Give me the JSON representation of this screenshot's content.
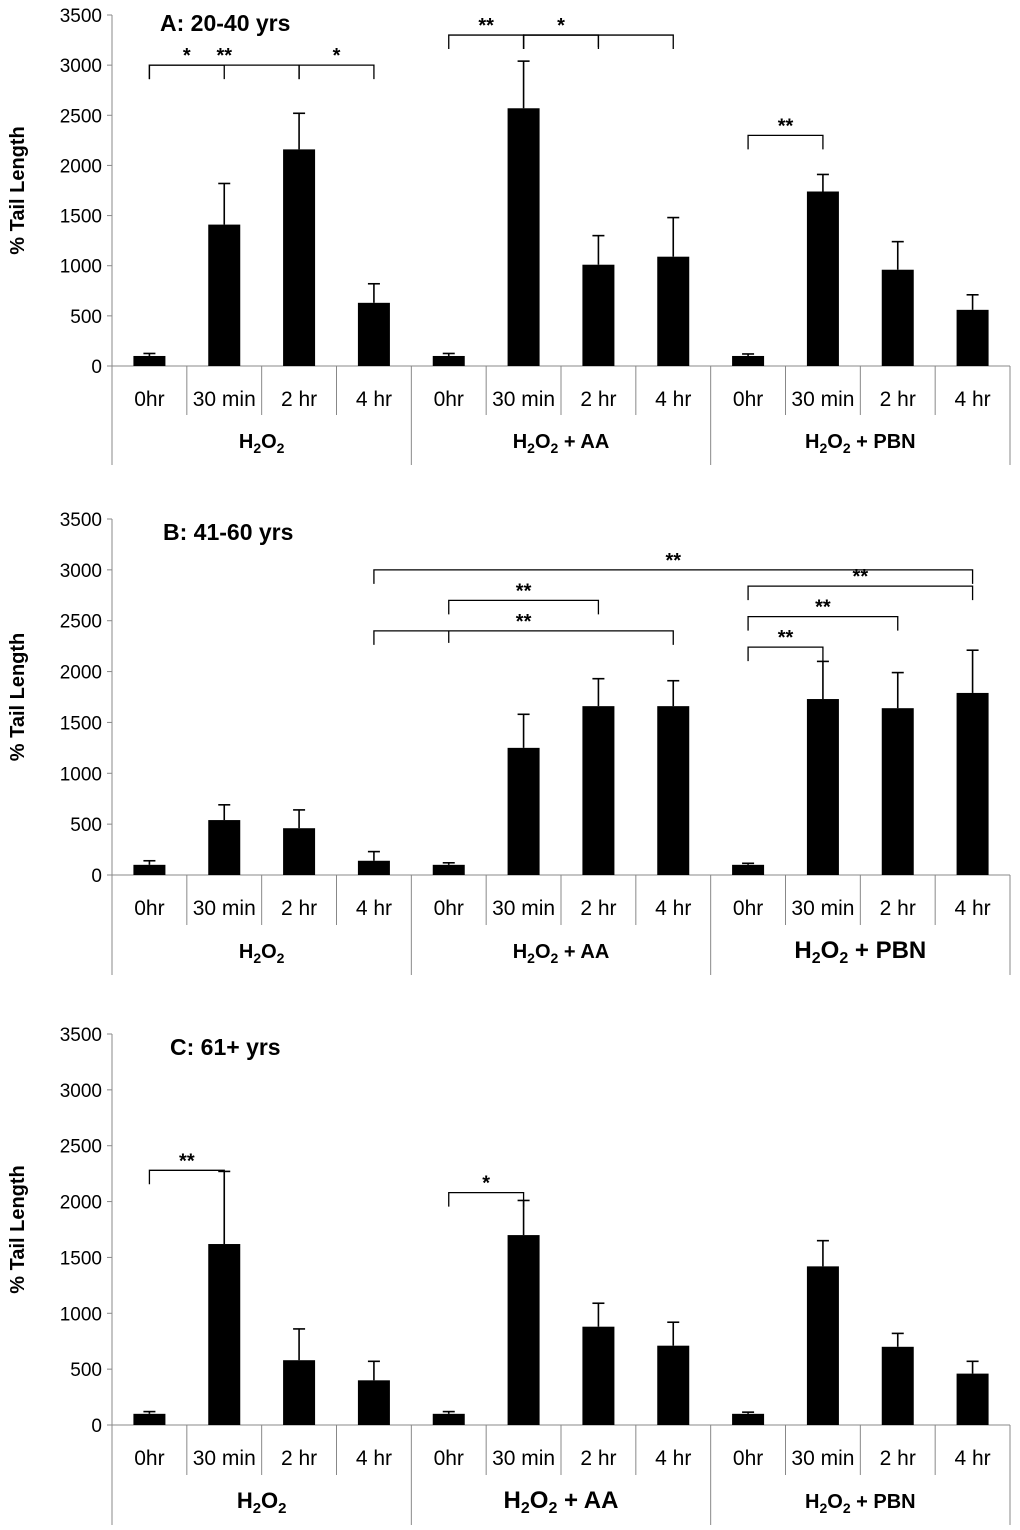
{
  "chart_data": [
    {
      "type": "bar",
      "title": "A: 20-40 yrs",
      "ylabel": "% Tail Length",
      "ylim": [
        0,
        3500
      ],
      "yticks": [
        "0",
        "500",
        "1000",
        "1500",
        "2000",
        "2500",
        "3000",
        "3500"
      ],
      "categories": [
        "0hr",
        "30 min",
        "2 hr",
        "4 hr",
        "0hr",
        "30 min",
        "2 hr",
        "4 hr",
        "0hr",
        "30 min",
        "2 hr",
        "4 hr"
      ],
      "groups": [
        {
          "base": "H",
          "sub1": "2",
          "mid": "O",
          "sub2": "2",
          "suffix": ""
        },
        {
          "base": "H",
          "sub1": "2",
          "mid": "O",
          "sub2": "2",
          "suffix": " + AA"
        },
        {
          "base": "H",
          "sub1": "2",
          "mid": "O",
          "sub2": "2",
          "suffix": " + PBN"
        }
      ],
      "values": [
        100,
        1410,
        2160,
        630,
        100,
        2570,
        1010,
        1090,
        100,
        1740,
        960,
        560
      ],
      "errors": [
        25,
        410,
        360,
        190,
        25,
        470,
        290,
        390,
        20,
        170,
        280,
        150
      ],
      "significance": [
        {
          "from": 0,
          "to": 1,
          "label": "*",
          "level": 3000
        },
        {
          "from": 0,
          "to": 2,
          "label": "**",
          "level": 3000
        },
        {
          "from": 2,
          "to": 3,
          "label": "*",
          "level": 3000
        },
        {
          "from": 4,
          "to": 5,
          "label": "**",
          "level": 3300
        },
        {
          "from": 5,
          "to": 6,
          "label": "*",
          "level": 3300
        },
        {
          "from": 5,
          "to": 7,
          "label": "",
          "level": 3300
        },
        {
          "from": 8,
          "to": 9,
          "label": "**",
          "level": 2300
        }
      ]
    },
    {
      "type": "bar",
      "title": "B: 41-60 yrs",
      "ylabel": "% Tail Length",
      "ylim": [
        0,
        3500
      ],
      "yticks": [
        "0",
        "500",
        "1000",
        "1500",
        "2000",
        "2500",
        "3000",
        "3500"
      ],
      "categories": [
        "0hr",
        "30 min",
        "2 hr",
        "4 hr",
        "0hr",
        "30 min",
        "2 hr",
        "4 hr",
        "0hr",
        "30 min",
        "2 hr",
        "4 hr"
      ],
      "groups": [
        {
          "base": "H",
          "sub1": "2",
          "mid": "O",
          "sub2": "2",
          "suffix": ""
        },
        {
          "base": "H",
          "sub1": "2",
          "mid": "O",
          "sub2": "2",
          "suffix": " + AA"
        },
        {
          "base": "H",
          "sub1": "2",
          "mid": "O",
          "sub2": "2",
          "suffix": " + PBN"
        }
      ],
      "values": [
        100,
        540,
        460,
        140,
        100,
        1250,
        1660,
        1660,
        100,
        1730,
        1640,
        1790
      ],
      "errors": [
        40,
        150,
        180,
        90,
        20,
        330,
        270,
        250,
        15,
        370,
        350,
        420
      ],
      "significance": [
        {
          "from": 3,
          "to": 11,
          "label": "**",
          "level": 3000
        },
        {
          "from": 4,
          "to": 6,
          "label": "**",
          "level": 2700
        },
        {
          "from": 3,
          "to": 7,
          "label": "**",
          "level": 2400
        },
        {
          "from": 8,
          "to": 11,
          "label": "**",
          "level": 2840
        },
        {
          "from": 8,
          "to": 10,
          "label": "**",
          "level": 2540
        },
        {
          "from": 8,
          "to": 9,
          "label": "**",
          "level": 2240
        }
      ]
    },
    {
      "type": "bar",
      "title": "C: 61+ yrs",
      "ylabel": "% Tail Length",
      "ylim": [
        0,
        3500
      ],
      "yticks": [
        "0",
        "500",
        "1000",
        "1500",
        "2000",
        "2500",
        "3000",
        "3500"
      ],
      "categories": [
        "0hr",
        "30 min",
        "2 hr",
        "4 hr",
        "0hr",
        "30 min",
        "2 hr",
        "4 hr",
        "0hr",
        "30 min",
        "2 hr",
        "4 hr"
      ],
      "groups": [
        {
          "base": "H",
          "sub1": "2",
          "mid": "O",
          "sub2": "2",
          "suffix": ""
        },
        {
          "base": "H",
          "sub1": "2",
          "mid": "O",
          "sub2": "2",
          "suffix": " + AA"
        },
        {
          "base": "H",
          "sub1": "2",
          "mid": "O",
          "sub2": "2",
          "suffix": " + PBN"
        }
      ],
      "values": [
        100,
        1620,
        580,
        400,
        100,
        1700,
        880,
        710,
        100,
        1420,
        700,
        460
      ],
      "errors": [
        20,
        650,
        280,
        170,
        20,
        310,
        210,
        210,
        15,
        230,
        120,
        110
      ],
      "significance": [
        {
          "from": 0,
          "to": 1,
          "label": "**",
          "level": 2280
        },
        {
          "from": 4,
          "to": 5,
          "label": "*",
          "level": 2080
        }
      ]
    }
  ]
}
